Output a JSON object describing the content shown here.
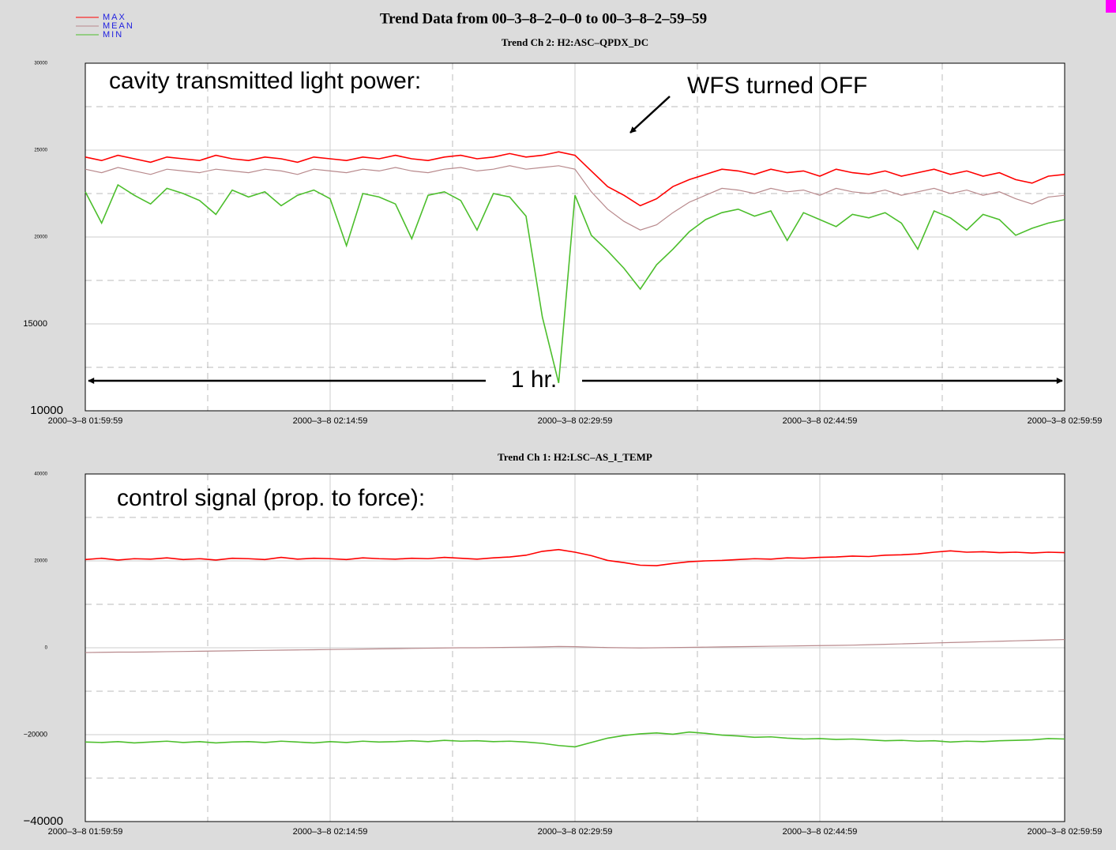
{
  "title": "Trend Data from 00–3–8–2–0–0 to 00–3–8–2–59–59",
  "chart_data": [
    {
      "type": "line",
      "subtitle": "Trend Ch 2: H2:ASC–QPDX_DC",
      "annotations": [
        "cavity transmitted light power:",
        "WFS turned OFF",
        "1 hr."
      ],
      "x": [
        0,
        1,
        2,
        3,
        4,
        5,
        6,
        7,
        8,
        9,
        10,
        11,
        12,
        13,
        14,
        15,
        16,
        17,
        18,
        19,
        20,
        21,
        22,
        23,
        24,
        25,
        26,
        27,
        28,
        29,
        30,
        31,
        32,
        33,
        34,
        35,
        36,
        37,
        38,
        39,
        40,
        41,
        42,
        43,
        44,
        45,
        46,
        47,
        48,
        49,
        50,
        51,
        52,
        53,
        54,
        55,
        56,
        57,
        58,
        59,
        60
      ],
      "xlim": [
        0,
        60
      ],
      "xticks": [
        {
          "value": 0,
          "label": "2000–3–8 01:59:59"
        },
        {
          "value": 15,
          "label": "2000–3–8 02:14:59"
        },
        {
          "value": 30,
          "label": "2000–3–8 02:29:59"
        },
        {
          "value": 45,
          "label": "2000–3–8 02:44:59"
        },
        {
          "value": 60,
          "label": "2000–3–8 02:59:59"
        }
      ],
      "xminorticks": [
        7.5,
        22.5,
        37.5,
        52.5
      ],
      "ylim": [
        10000,
        30000
      ],
      "yticks": [
        30000,
        25000,
        20000,
        15000,
        10000
      ],
      "yminorticks": [
        27500,
        22500,
        17500,
        12500
      ],
      "series": [
        {
          "name": "MAX",
          "color": "#ff0000",
          "values": [
            24600,
            24400,
            24700,
            24500,
            24300,
            24600,
            24500,
            24400,
            24700,
            24500,
            24400,
            24600,
            24500,
            24300,
            24600,
            24500,
            24400,
            24600,
            24500,
            24700,
            24500,
            24400,
            24600,
            24700,
            24500,
            24600,
            24800,
            24600,
            24700,
            24900,
            24700,
            23800,
            22900,
            22400,
            21800,
            22200,
            22900,
            23300,
            23600,
            23900,
            23800,
            23600,
            23900,
            23700,
            23800,
            23500,
            23900,
            23700,
            23600,
            23800,
            23500,
            23700,
            23900,
            23600,
            23800,
            23500,
            23700,
            23300,
            23100,
            23500,
            23600
          ]
        },
        {
          "name": "MEAN",
          "color": "#b8898c",
          "values": [
            23900,
            23700,
            24000,
            23800,
            23600,
            23900,
            23800,
            23700,
            23900,
            23800,
            23700,
            23900,
            23800,
            23600,
            23900,
            23800,
            23700,
            23900,
            23800,
            24000,
            23800,
            23700,
            23900,
            24000,
            23800,
            23900,
            24100,
            23900,
            24000,
            24100,
            23900,
            22600,
            21600,
            20900,
            20400,
            20700,
            21400,
            22000,
            22400,
            22800,
            22700,
            22500,
            22800,
            22600,
            22700,
            22400,
            22800,
            22600,
            22500,
            22700,
            22400,
            22600,
            22800,
            22500,
            22700,
            22400,
            22600,
            22200,
            21900,
            22300,
            22400
          ]
        },
        {
          "name": "MIN",
          "color": "#4cbe2c",
          "values": [
            22600,
            20800,
            23000,
            22400,
            21900,
            22800,
            22500,
            22100,
            21300,
            22700,
            22300,
            22600,
            21800,
            22400,
            22700,
            22200,
            19500,
            22500,
            22300,
            21900,
            19900,
            22400,
            22600,
            22100,
            20400,
            22500,
            22300,
            21200,
            15400,
            11600,
            22400,
            20100,
            19200,
            18200,
            17000,
            18400,
            19300,
            20300,
            21000,
            21400,
            21600,
            21200,
            21500,
            19800,
            21400,
            21000,
            20600,
            21300,
            21100,
            21400,
            20800,
            19300,
            21500,
            21100,
            20400,
            21300,
            21000,
            20100,
            20500,
            20800,
            21000
          ]
        }
      ]
    },
    {
      "type": "line",
      "subtitle": "Trend Ch 1: H2:LSC–AS_I_TEMP",
      "annotations": [
        "control signal (prop. to force):"
      ],
      "x": [
        0,
        1,
        2,
        3,
        4,
        5,
        6,
        7,
        8,
        9,
        10,
        11,
        12,
        13,
        14,
        15,
        16,
        17,
        18,
        19,
        20,
        21,
        22,
        23,
        24,
        25,
        26,
        27,
        28,
        29,
        30,
        31,
        32,
        33,
        34,
        35,
        36,
        37,
        38,
        39,
        40,
        41,
        42,
        43,
        44,
        45,
        46,
        47,
        48,
        49,
        50,
        51,
        52,
        53,
        54,
        55,
        56,
        57,
        58,
        59,
        60
      ],
      "xlim": [
        0,
        60
      ],
      "xticks": [
        {
          "value": 0,
          "label": "2000–3–8 01:59:59"
        },
        {
          "value": 15,
          "label": "2000–3–8 02:14:59"
        },
        {
          "value": 30,
          "label": "2000–3–8 02:29:59"
        },
        {
          "value": 45,
          "label": "2000–3–8 02:44:59"
        },
        {
          "value": 60,
          "label": "2000–3–8 02:59:59"
        }
      ],
      "xminorticks": [
        7.5,
        22.5,
        37.5,
        52.5
      ],
      "ylim": [
        -40000,
        40000
      ],
      "yticks": [
        40000,
        20000,
        0,
        {
          "value": -20000,
          "label": "−20000"
        },
        {
          "value": -40000,
          "label": "−40000"
        }
      ],
      "yminorticks": [
        30000,
        10000,
        -10000,
        -30000
      ],
      "series": [
        {
          "name": "MAX",
          "color": "#ff0000",
          "values": [
            20300,
            20600,
            20200,
            20500,
            20400,
            20700,
            20300,
            20500,
            20200,
            20600,
            20500,
            20300,
            20800,
            20400,
            20600,
            20500,
            20300,
            20700,
            20500,
            20400,
            20600,
            20500,
            20800,
            20600,
            20400,
            20700,
            20900,
            21300,
            22200,
            22600,
            22000,
            21200,
            20100,
            19600,
            19000,
            18900,
            19400,
            19800,
            20000,
            20100,
            20300,
            20500,
            20400,
            20700,
            20600,
            20800,
            20900,
            21100,
            21000,
            21300,
            21400,
            21600,
            22000,
            22300,
            22000,
            22100,
            21900,
            22000,
            21800,
            22000,
            21900
          ]
        },
        {
          "name": "MEAN",
          "color": "#b8898c",
          "values": [
            -1100,
            -1050,
            -1000,
            -1000,
            -950,
            -900,
            -850,
            -800,
            -750,
            -700,
            -650,
            -600,
            -550,
            -500,
            -450,
            -400,
            -350,
            -300,
            -250,
            -200,
            -150,
            -100,
            -50,
            0,
            0,
            50,
            100,
            150,
            200,
            300,
            250,
            150,
            50,
            0,
            -50,
            0,
            50,
            100,
            150,
            200,
            250,
            300,
            350,
            400,
            450,
            500,
            550,
            600,
            700,
            800,
            900,
            1000,
            1100,
            1200,
            1300,
            1400,
            1500,
            1600,
            1700,
            1800,
            1900
          ]
        },
        {
          "name": "MIN",
          "color": "#4cbe2c",
          "values": [
            -21700,
            -21800,
            -21600,
            -21900,
            -21700,
            -21500,
            -21800,
            -21600,
            -21900,
            -21700,
            -21600,
            -21800,
            -21500,
            -21700,
            -21900,
            -21600,
            -21800,
            -21500,
            -21700,
            -21600,
            -21400,
            -21600,
            -21300,
            -21500,
            -21400,
            -21600,
            -21500,
            -21700,
            -22000,
            -22500,
            -22800,
            -21800,
            -20800,
            -20200,
            -19800,
            -19600,
            -19900,
            -19400,
            -19700,
            -20100,
            -20300,
            -20600,
            -20500,
            -20800,
            -21000,
            -20900,
            -21100,
            -21000,
            -21200,
            -21400,
            -21300,
            -21500,
            -21400,
            -21700,
            -21500,
            -21600,
            -21400,
            -21300,
            -21200,
            -20900,
            -21000
          ]
        }
      ]
    }
  ]
}
